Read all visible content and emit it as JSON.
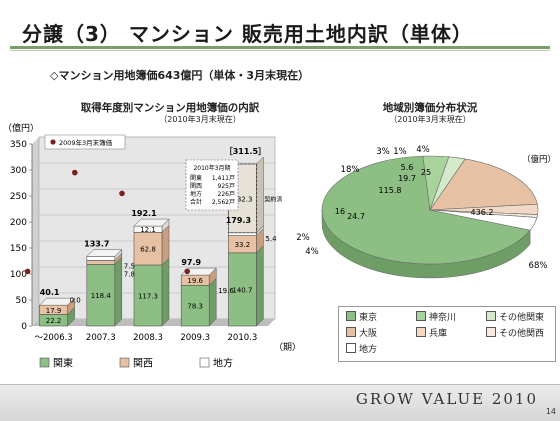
{
  "slide": {
    "title": "分譲（3） マンション 販売用土地内訳（単体）",
    "summary": "◇マンション用地簿価643億円（単体・3月末現在）",
    "brand": "GROW VALUE 2010",
    "page_number": "14"
  },
  "left_chart": {
    "title": "取得年度別マンション用地簿価の内訳",
    "subtitle": "（2010年3月末現在）",
    "y_unit": "（億円）",
    "x_unit": "（期）",
    "legend_marker_label": "2009年3月末簿価",
    "info_box": {
      "title": "2010年3月期",
      "rows": [
        {
          "label": "関東",
          "value": "1,411戸"
        },
        {
          "label": "関西",
          "value": "925戸"
        },
        {
          "label": "地方",
          "value": "226戸"
        },
        {
          "label": "合計",
          "value": "2,562戸"
        }
      ]
    },
    "outside_labels": {
      "l2007": "7.5\n7.8",
      "l2009": "19.6",
      "l2010": "5.4",
      "l2006": "0.0"
    },
    "contract_label": "契約済"
  },
  "right_chart": {
    "title": "地域別簿価分布状況",
    "subtitle": "（2010年3月末現在）",
    "unit": "（億円）"
  },
  "chart_data": [
    {
      "type": "bar",
      "stacked": true,
      "categories": [
        "～2006.3",
        "2007.3",
        "2008.3",
        "2009.3",
        "2010.3"
      ],
      "series": [
        {
          "name": "関東",
          "color": "#8dbf84",
          "values": [
            22.2,
            118.4,
            117.3,
            78.3,
            140.7
          ]
        },
        {
          "name": "関西",
          "color": "#e6c1a4",
          "values": [
            17.9,
            7.8,
            62.8,
            19.6,
            33.2
          ]
        },
        {
          "name": "地方",
          "color": "#ffffff",
          "values": [
            0.0,
            7.5,
            12.1,
            0.0,
            5.4
          ]
        }
      ],
      "totals": [
        40.1,
        133.7,
        192.1,
        97.9,
        179.3
      ],
      "extra_segment": {
        "category": "2010.3",
        "value": 132.3,
        "total": 311.5,
        "label_total": "［311.5］"
      },
      "markers_2009_book_value": [
        105,
        295,
        255,
        105,
        null
      ],
      "ylim": [
        0,
        350
      ],
      "yticks": [
        0,
        50,
        100,
        150,
        200,
        250,
        300,
        350
      ],
      "ylabel": "（億円）",
      "xlabel": "（期）"
    },
    {
      "type": "pie",
      "unit": "億円",
      "slices": [
        {
          "name": "東京",
          "value": 436.2,
          "percent": "68%",
          "color": "#8dbf84"
        },
        {
          "name": "神奈川",
          "value": 24.7,
          "percent": "4%",
          "color": "#a9d39d"
        },
        {
          "name": "その他関東",
          "value": 16.0,
          "percent": "2%",
          "color": "#d4eacb"
        },
        {
          "name": "大阪",
          "value": 115.8,
          "percent": "18%",
          "color": "#e6c1a4"
        },
        {
          "name": "兵庫",
          "value": 19.7,
          "percent": "3%",
          "color": "#f1d9c6"
        },
        {
          "name": "その他関西",
          "value": 5.6,
          "percent": "1%",
          "color": "#f7e9dc"
        },
        {
          "name": "地方",
          "value": 25.0,
          "percent": "4%",
          "color": "#ffffff"
        }
      ]
    }
  ]
}
